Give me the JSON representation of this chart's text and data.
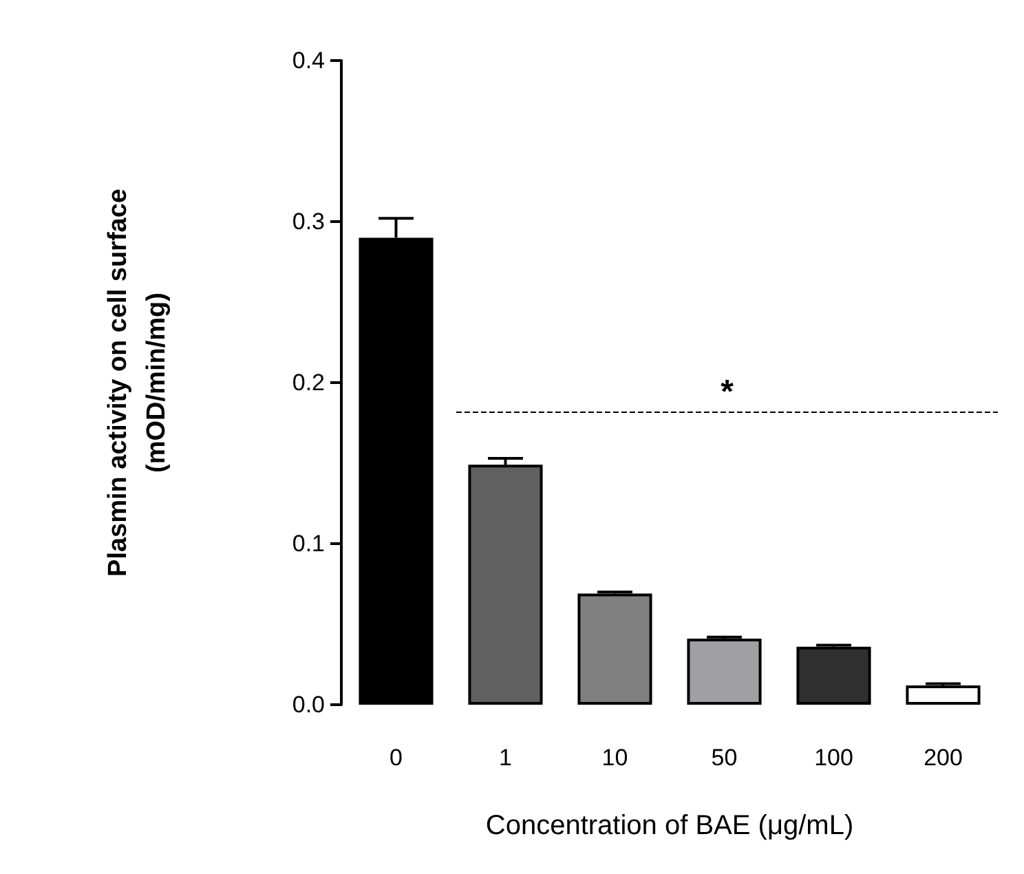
{
  "chart_data": {
    "type": "bar",
    "xlabel": "Concentration of BAE (μg/mL)",
    "ylabel": "Plasmin activity on cell surface\n(mOD/min/mg)",
    "categories": [
      "0",
      "1",
      "10",
      "50",
      "100",
      "200"
    ],
    "values": [
      0.29,
      0.149,
      0.069,
      0.041,
      0.036,
      0.012
    ],
    "colors": [
      "#000000",
      "#606060",
      "#808080",
      "#a0a0a4",
      "#303030",
      "#ffffff"
    ],
    "errors": [
      [
        0.29,
        0.302
      ],
      [
        0.149,
        0.153
      ],
      [
        0.069,
        0.07
      ],
      [
        0.041,
        0.042
      ],
      [
        0.036,
        0.037
      ],
      [
        0.012,
        0.013
      ]
    ],
    "ylim": [
      0,
      0.4
    ],
    "yticks": [
      {
        "value": 0,
        "label": "0.0"
      },
      {
        "value": 0.1,
        "label": "0.1"
      },
      {
        "value": 0.2,
        "label": "0.2"
      },
      {
        "value": 0.3,
        "label": "0.3"
      },
      {
        "value": 0.4,
        "label": "0.4"
      }
    ],
    "ref_lines": [
      {
        "axis": "y",
        "value": 0.182,
        "label": "*",
        "line_style": "dashed",
        "color": "#000000"
      }
    ],
    "grid": false
  }
}
